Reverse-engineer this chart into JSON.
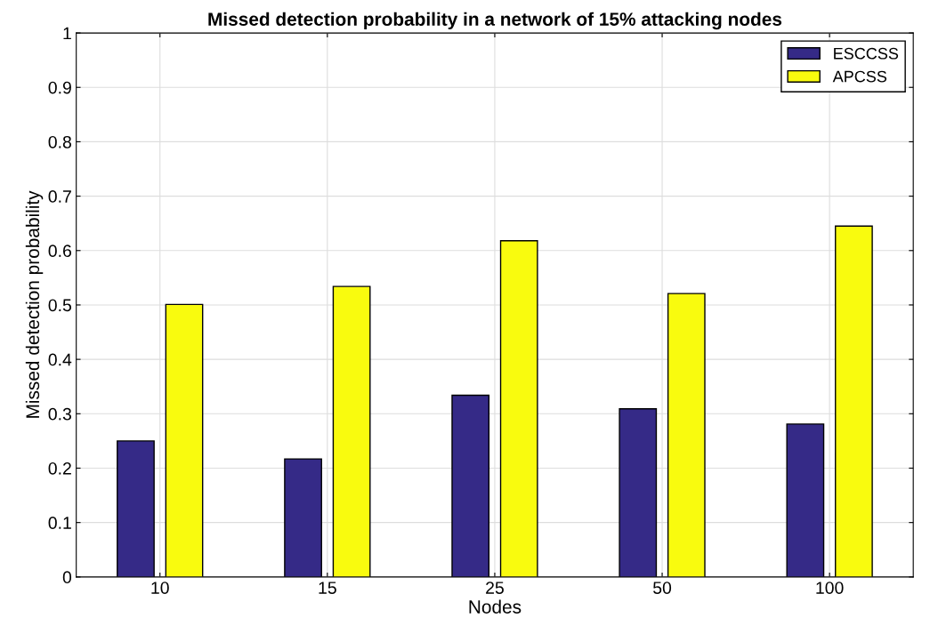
{
  "chart_data": {
    "type": "bar",
    "title": "Missed detection probability in a network of 15% attacking nodes",
    "xlabel": "Nodes",
    "ylabel": "Missed detection probability",
    "categories": [
      "10",
      "15",
      "25",
      "50",
      "100"
    ],
    "series": [
      {
        "name": "ESCCSS",
        "color": "#352a87",
        "values": [
          0.25,
          0.217,
          0.334,
          0.309,
          0.281
        ]
      },
      {
        "name": "APCSS",
        "color": "#f9fb0e",
        "values": [
          0.501,
          0.534,
          0.618,
          0.521,
          0.645
        ]
      }
    ],
    "ylim": [
      0,
      1
    ],
    "yticks": [
      0,
      0.1,
      0.2,
      0.3,
      0.4,
      0.5,
      0.6,
      0.7,
      0.8,
      0.9,
      1
    ],
    "grid": true,
    "legend": "top right"
  }
}
